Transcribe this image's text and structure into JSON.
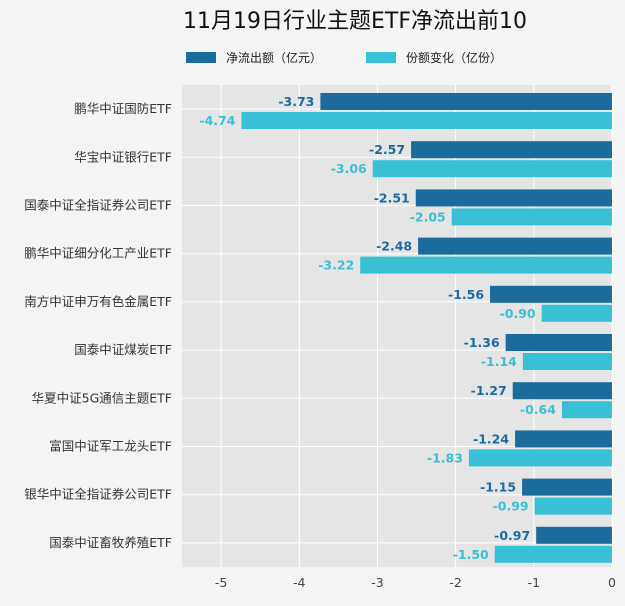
{
  "chart_data": {
    "type": "bar",
    "orientation": "horizontal",
    "title": "11月19日行业主题ETF净流出前10",
    "categories": [
      "鹏华中证国防ETF",
      "华宝中证银行ETF",
      "国泰中证全指证券公司ETF",
      "鹏华中证细分化工产业ETF",
      "南方中证申万有色金属ETF",
      "国泰中证煤炭ETF",
      "华夏中证5G通信主题ETF",
      "富国中证军工龙头ETF",
      "银华中证全指证券公司ETF",
      "国泰中证畜牧养殖ETF"
    ],
    "series": [
      {
        "name": "净流出额（亿元）",
        "color": "#1b6c9c",
        "values": [
          -3.73,
          -2.57,
          -2.51,
          -2.48,
          -1.56,
          -1.36,
          -1.27,
          -1.24,
          -1.15,
          -0.97
        ]
      },
      {
        "name": "份额变化（亿份）",
        "color": "#38c0d4",
        "values": [
          -4.74,
          -3.06,
          -2.05,
          -3.22,
          -0.9,
          -1.14,
          -0.64,
          -1.83,
          -0.99,
          -1.5
        ]
      }
    ],
    "xlim": [
      -5.5,
      0
    ],
    "xticks": [
      -5,
      -4,
      -3,
      -2,
      -1,
      0
    ],
    "xlabel": "",
    "ylabel": "",
    "grid": true,
    "legend": "top-center"
  }
}
